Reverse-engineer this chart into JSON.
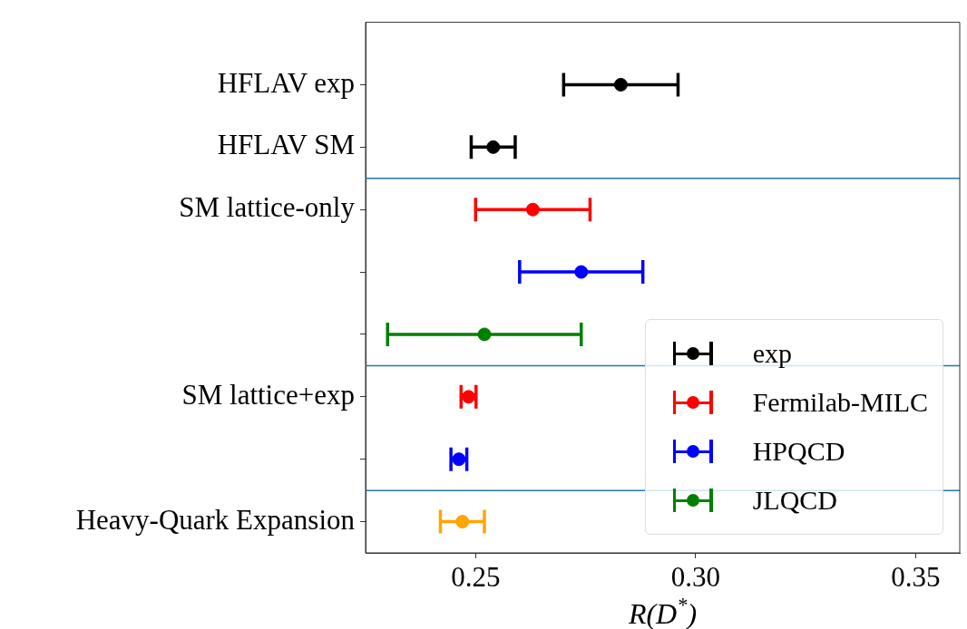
{
  "chart_data": {
    "type": "scatter",
    "orientation": "horizontal",
    "xlabel": "R(D$^{*}$)",
    "xlim": [
      0.225,
      0.36
    ],
    "xticks": [
      {
        "value": 0.25,
        "label": "0.25"
      },
      {
        "value": 0.3,
        "label": "0.30"
      },
      {
        "value": 0.35,
        "label": "0.35"
      }
    ],
    "categories": [
      "HFLAV exp",
      "HFLAV SM",
      "SM lattice-only",
      null,
      null,
      "SM lattice+exp",
      null,
      "Heavy-Quark Expansion"
    ],
    "marker": "circle",
    "legend": "bottom right",
    "series": [
      {
        "name": "exp",
        "color": "#000000",
        "values": [
          0.283,
          0.254,
          null,
          null,
          null,
          null,
          null,
          null
        ],
        "errors": [
          0.013,
          0.005,
          null,
          null,
          null,
          null,
          null,
          null
        ]
      },
      {
        "name": "Fermilab-MILC",
        "color": "#ff0000",
        "values": [
          null,
          null,
          0.263,
          null,
          null,
          0.2484,
          null,
          null
        ],
        "errors": [
          null,
          null,
          0.013,
          null,
          null,
          0.0017,
          null,
          null
        ]
      },
      {
        "name": "HPQCD",
        "color": "#0000ff",
        "values": [
          null,
          null,
          null,
          0.274,
          null,
          null,
          0.2462,
          null
        ],
        "errors": [
          null,
          null,
          null,
          0.014,
          null,
          null,
          0.0018,
          null
        ]
      },
      {
        "name": "JLQCD",
        "color": "#008000",
        "values": [
          null,
          null,
          null,
          null,
          0.252,
          null,
          null,
          null
        ],
        "errors": [
          null,
          null,
          null,
          null,
          0.022,
          null,
          null,
          null
        ]
      },
      {
        "color": "#ffa500",
        "values": [
          null,
          null,
          null,
          null,
          null,
          null,
          null,
          0.247
        ],
        "errors": [
          null,
          null,
          null,
          null,
          null,
          null,
          null,
          0.005
        ]
      }
    ]
  }
}
